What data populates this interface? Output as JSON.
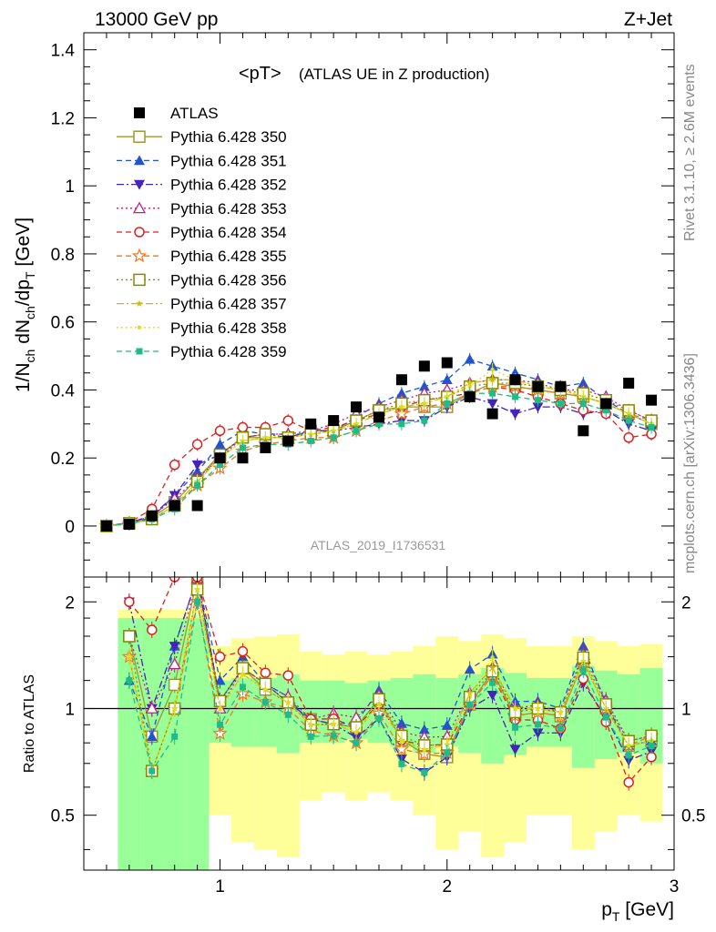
{
  "header": {
    "left_title": "13000 GeV pp",
    "right_title": "Z+Jet",
    "plot_title": "<pT>",
    "plot_subtitle": "(ATLAS UE in Z production)",
    "side_text_top": "Rivet 3.1.10, ≥ 2.6M events",
    "side_text_bottom": "mcplots.cern.ch [arXiv:1306.3436]",
    "watermark": "ATLAS_2019_I1736531"
  },
  "chart_data": {
    "type": "scatter",
    "x": [
      0.5,
      0.6,
      0.7,
      0.8,
      0.9,
      1.0,
      1.1,
      1.2,
      1.3,
      1.4,
      1.5,
      1.6,
      1.7,
      1.8,
      1.9,
      2.0,
      2.1,
      2.2,
      2.3,
      2.4,
      2.5,
      2.6,
      2.7,
      2.8,
      2.9
    ],
    "xlabel": "p_T [GeV]",
    "xlim": [
      0.4,
      3.0
    ],
    "xticks": [
      "1",
      "2",
      "3"
    ],
    "main_panel": {
      "ylabel": "1/N_ch dN_ch/dp_T [GeV]",
      "ylim": [
        -0.15,
        1.45
      ],
      "yticks": [
        "0",
        "0.2",
        "0.4",
        "0.6",
        "0.8",
        "1",
        "1.2",
        "1.4"
      ]
    },
    "ratio_panel": {
      "ylabel": "Ratio to ATLAS",
      "ylim": [
        0.35,
        2.35
      ],
      "yticks": [
        "0.5",
        "1",
        "2"
      ],
      "reference_line": 1,
      "band_green_halfwidth": [
        0.8,
        0.8,
        0.8,
        0.8,
        0.8,
        0.2,
        0.22,
        0.22,
        0.25,
        0.2,
        0.2,
        0.18,
        0.2,
        0.22,
        0.25,
        0.22,
        0.25,
        0.3,
        0.26,
        0.22,
        0.22,
        0.32,
        0.28,
        0.25,
        0.3
      ],
      "band_yellow_halfwidth": [
        0.9,
        0.9,
        0.9,
        0.9,
        0.9,
        0.5,
        0.58,
        0.6,
        0.62,
        0.45,
        0.42,
        0.45,
        0.42,
        0.45,
        0.5,
        0.6,
        0.55,
        0.62,
        0.58,
        0.5,
        0.5,
        0.6,
        0.55,
        0.5,
        0.52
      ]
    },
    "legend_position": "upper-left",
    "series": [
      {
        "name": "ATLAS",
        "marker": "filled-square",
        "color": "#000000",
        "line": "none",
        "values": [
          0,
          0.005,
          0.03,
          0.06,
          0.06,
          0.2,
          0.2,
          0.23,
          0.25,
          0.3,
          0.31,
          0.35,
          0.32,
          0.43,
          0.47,
          0.48,
          0.38,
          0.33,
          0.43,
          0.41,
          0.41,
          0.28,
          0.36,
          0.42,
          0.37
        ]
      },
      {
        "name": "Pythia 6.428 350",
        "marker": "open-square",
        "color": "#999933",
        "line": "solid",
        "values": [
          0,
          0.008,
          0.025,
          0.07,
          0.14,
          0.21,
          0.26,
          0.26,
          0.26,
          0.28,
          0.28,
          0.31,
          0.34,
          0.35,
          0.35,
          0.35,
          0.39,
          0.42,
          0.41,
          0.4,
          0.39,
          0.38,
          0.36,
          0.33,
          0.3
        ]
      },
      {
        "name": "Pythia 6.428 351",
        "marker": "filled-triangle-up",
        "color": "#2255cc",
        "line": "dashed",
        "values": [
          0,
          0.006,
          0.025,
          0.09,
          0.16,
          0.24,
          0.28,
          0.27,
          0.27,
          0.27,
          0.28,
          0.32,
          0.36,
          0.39,
          0.41,
          0.43,
          0.49,
          0.47,
          0.45,
          0.43,
          0.41,
          0.42,
          0.37,
          0.33,
          0.3
        ]
      },
      {
        "name": "Pythia 6.428 352",
        "marker": "filled-triangle-down",
        "color": "#4422bb",
        "line": "dashdot",
        "values": [
          0,
          0.01,
          0.03,
          0.09,
          0.18,
          0.21,
          0.26,
          0.27,
          0.26,
          0.28,
          0.28,
          0.29,
          0.3,
          0.31,
          0.31,
          0.35,
          0.38,
          0.36,
          0.33,
          0.35,
          0.35,
          0.33,
          0.34,
          0.3,
          0.28
        ]
      },
      {
        "name": "Pythia 6.428 353",
        "marker": "open-triangle-up",
        "color": "#bb2288",
        "line": "dotted",
        "values": [
          0,
          0.008,
          0.03,
          0.08,
          0.14,
          0.2,
          0.26,
          0.27,
          0.27,
          0.28,
          0.3,
          0.33,
          0.35,
          0.37,
          0.39,
          0.4,
          0.42,
          0.43,
          0.43,
          0.42,
          0.4,
          0.4,
          0.38,
          0.34,
          0.31
        ]
      },
      {
        "name": "Pythia 6.428 354",
        "marker": "open-circle",
        "color": "#dd2222",
        "line": "dashed",
        "values": [
          0,
          0.01,
          0.05,
          0.18,
          0.24,
          0.28,
          0.29,
          0.29,
          0.31,
          0.28,
          0.29,
          0.31,
          0.33,
          0.35,
          0.37,
          0.38,
          0.39,
          0.41,
          0.4,
          0.38,
          0.36,
          0.34,
          0.33,
          0.26,
          0.27
        ]
      },
      {
        "name": "Pythia 6.428 355",
        "marker": "open-star",
        "color": "#ee7722",
        "line": "dashed",
        "values": [
          0,
          0.007,
          0.02,
          0.06,
          0.12,
          0.17,
          0.22,
          0.24,
          0.25,
          0.26,
          0.26,
          0.28,
          0.31,
          0.33,
          0.35,
          0.36,
          0.39,
          0.41,
          0.41,
          0.4,
          0.39,
          0.38,
          0.36,
          0.33,
          0.31
        ]
      },
      {
        "name": "Pythia 6.428 356",
        "marker": "open-square",
        "color": "#888800",
        "line": "dotted",
        "values": [
          0,
          0.008,
          0.02,
          0.06,
          0.13,
          0.21,
          0.26,
          0.27,
          0.26,
          0.27,
          0.28,
          0.31,
          0.34,
          0.36,
          0.37,
          0.38,
          0.41,
          0.42,
          0.42,
          0.41,
          0.4,
          0.39,
          0.37,
          0.34,
          0.31
        ]
      },
      {
        "name": "Pythia 6.428 357",
        "marker": "small-star",
        "color": "#ccbb00",
        "line": "dashdot",
        "values": [
          0,
          0.007,
          0.02,
          0.06,
          0.13,
          0.2,
          0.25,
          0.26,
          0.26,
          0.27,
          0.28,
          0.3,
          0.33,
          0.35,
          0.36,
          0.38,
          0.42,
          0.43,
          0.43,
          0.41,
          0.4,
          0.38,
          0.36,
          0.33,
          0.3
        ]
      },
      {
        "name": "Pythia 6.428 358",
        "marker": "small-dot",
        "color": "#dddd22",
        "line": "dotted",
        "values": [
          0,
          0.007,
          0.02,
          0.06,
          0.13,
          0.2,
          0.25,
          0.26,
          0.26,
          0.27,
          0.28,
          0.3,
          0.33,
          0.35,
          0.36,
          0.38,
          0.41,
          0.46,
          0.43,
          0.41,
          0.4,
          0.38,
          0.36,
          0.33,
          0.3
        ]
      },
      {
        "name": "Pythia 6.428 359",
        "marker": "filled-square-small",
        "color": "#22bb88",
        "line": "dashed",
        "values": [
          0,
          0.006,
          0.02,
          0.05,
          0.12,
          0.18,
          0.23,
          0.24,
          0.24,
          0.25,
          0.26,
          0.28,
          0.3,
          0.3,
          0.31,
          0.36,
          0.39,
          0.39,
          0.38,
          0.37,
          0.36,
          0.36,
          0.34,
          0.31,
          0.29
        ]
      }
    ]
  }
}
